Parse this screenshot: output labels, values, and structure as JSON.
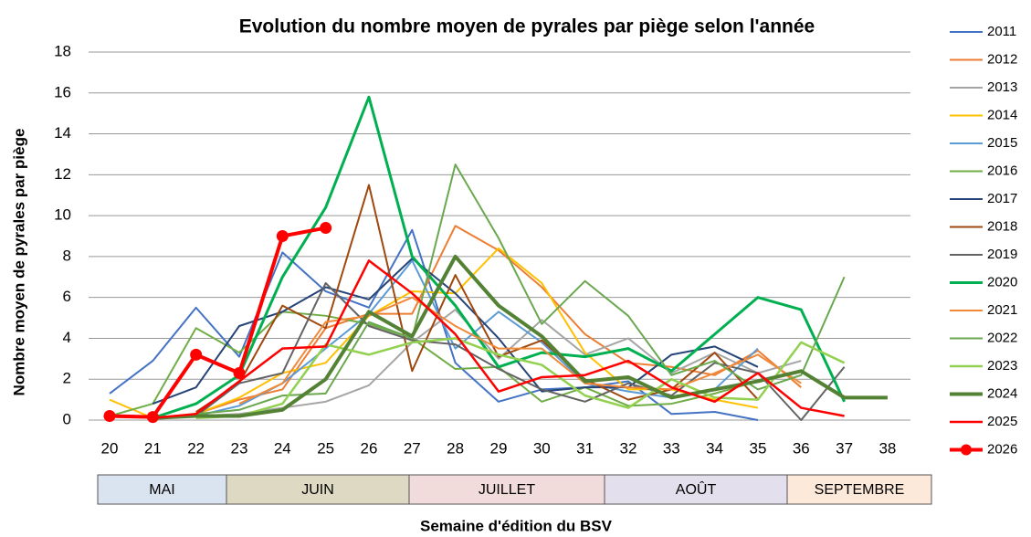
{
  "chart_data": {
    "type": "line",
    "title": "Evolution du nombre moyen de pyrales par piège selon l'année",
    "y_label": "Nombre moyen de pyrales par piège",
    "x_label": "Semaine d'édition du BSV",
    "categories": [
      20,
      21,
      22,
      23,
      24,
      25,
      26,
      27,
      28,
      29,
      30,
      31,
      32,
      33,
      34,
      35,
      36,
      37,
      38
    ],
    "ylim": [
      0,
      18
    ],
    "yticks": [
      0,
      2,
      4,
      6,
      8,
      10,
      12,
      14,
      16,
      18
    ],
    "grid": true,
    "legend": "right",
    "months": [
      "MAI",
      "JUIN",
      "JUILLET",
      "AOÛT",
      "SEPTEMBRE"
    ],
    "series": [
      {
        "name": "2011",
        "color": "#4472c4",
        "values": [
          1.3,
          2.9,
          5.5,
          3.1,
          8.2,
          6.3,
          5.5,
          9.3,
          2.8,
          0.9,
          1.5,
          1.6,
          1.9,
          0.3,
          0.4,
          0,
          null,
          null,
          null
        ]
      },
      {
        "name": "2012",
        "color": "#ed7d31",
        "values": [
          null,
          0.1,
          0.3,
          1,
          1.5,
          4.5,
          5.2,
          5.2,
          9.5,
          8.3,
          6.5,
          4.2,
          2.8,
          2.6,
          2.2,
          3.4,
          1.6,
          null,
          null
        ]
      },
      {
        "name": "2013",
        "color": "#a5a5a5",
        "values": [
          null,
          0.1,
          0.2,
          0.3,
          0.6,
          0.9,
          1.7,
          3.8,
          5.4,
          3,
          4.9,
          3.2,
          4,
          2.3,
          3.3,
          2.3,
          2.9,
          null,
          null
        ]
      },
      {
        "name": "2014",
        "color": "#ffc000",
        "values": [
          1,
          0.1,
          0.3,
          1.1,
          2.3,
          2.8,
          5.1,
          6.3,
          6.2,
          8.4,
          6.7,
          3.3,
          1.5,
          1.5,
          1,
          0.6,
          null,
          null,
          null
        ]
      },
      {
        "name": "2015",
        "color": "#5b9bd5",
        "values": [
          null,
          null,
          0.2,
          0.7,
          1.8,
          3.5,
          5.2,
          7.8,
          3.5,
          5.3,
          3.8,
          1.8,
          1.4,
          1.1,
          1.5,
          3.5,
          null,
          null,
          null
        ]
      },
      {
        "name": "2016",
        "color": "#70ad47",
        "values": [
          0.2,
          0.8,
          4.5,
          3.3,
          5.3,
          5.1,
          4.7,
          4,
          2.5,
          2.6,
          0.9,
          1.6,
          0.7,
          0.8,
          1.3,
          1.9,
          null,
          null,
          null
        ]
      },
      {
        "name": "2017",
        "color": "#264478",
        "values": [
          null,
          0.8,
          1.6,
          4.6,
          5.3,
          6.5,
          5.9,
          7.9,
          6.2,
          4,
          1.4,
          1.6,
          1.6,
          3.2,
          3.6,
          2.6,
          null,
          null,
          null
        ]
      },
      {
        "name": "2018",
        "color": "#9e480e",
        "values": [
          null,
          null,
          0.4,
          1.8,
          5.6,
          4.5,
          11.5,
          2.4,
          7.1,
          3.1,
          3.9,
          2,
          1,
          1.5,
          3.3,
          1,
          null,
          null,
          null
        ]
      },
      {
        "name": "2019",
        "color": "#636363",
        "values": [
          null,
          null,
          0.2,
          1.8,
          2.3,
          6.7,
          4.6,
          3.9,
          3.7,
          2.5,
          1.5,
          0.9,
          1.8,
          1.2,
          2.8,
          2.3,
          0,
          2.6,
          null
        ]
      },
      {
        "name": "2020",
        "color": "#00b050",
        "width": 3,
        "values": [
          null,
          0.1,
          0.8,
          2.2,
          7,
          10.4,
          15.8,
          8,
          5.6,
          2.6,
          3.3,
          3.1,
          3.5,
          2.4,
          4.2,
          6,
          5.4,
          0.9,
          null
        ]
      },
      {
        "name": "2021",
        "color": "#f08a3a",
        "values": [
          null,
          null,
          null,
          0.8,
          1.8,
          4.8,
          5.1,
          6,
          4.6,
          3.5,
          3.5,
          1.8,
          1.6,
          1.5,
          2.3,
          3.2,
          1.8,
          null,
          null
        ]
      },
      {
        "name": "2022",
        "color": "#6aa84f",
        "values": [
          null,
          null,
          0.3,
          0.5,
          1.2,
          1.3,
          4.8,
          4,
          12.5,
          8.9,
          4.7,
          6.8,
          5.1,
          2.2,
          2.9,
          1.5,
          2.2,
          7,
          null
        ]
      },
      {
        "name": "2023",
        "color": "#92d050",
        "width": 2.5,
        "values": [
          null,
          null,
          0.1,
          0.2,
          0.8,
          3.7,
          3.2,
          3.8,
          4,
          3.2,
          2.7,
          1.2,
          0.6,
          2,
          1.1,
          1,
          3.8,
          2.8,
          null
        ]
      },
      {
        "name": "2024",
        "color": "#548235",
        "width": 4,
        "values": [
          null,
          0.1,
          0.2,
          0.2,
          0.5,
          2,
          5.3,
          4.1,
          8,
          5.6,
          4.1,
          1.9,
          2.1,
          1.1,
          1.5,
          1.9,
          2.4,
          1.1,
          1.1
        ]
      },
      {
        "name": "2025",
        "color": "#ff0000",
        "width": 2.5,
        "values": [
          null,
          0.1,
          0.3,
          1.9,
          3.5,
          3.6,
          7.8,
          6.2,
          4.2,
          1.4,
          2.1,
          2.2,
          2.9,
          1.6,
          0.9,
          2.3,
          0.6,
          0.2,
          null
        ]
      },
      {
        "name": "2026",
        "color": "#ff0000",
        "width": 4,
        "markers": true,
        "values": [
          0.2,
          0.15,
          3.2,
          2.3,
          9,
          9.4,
          null,
          null,
          null,
          null,
          null,
          null,
          null,
          null,
          null,
          null,
          null,
          null,
          null
        ]
      }
    ]
  }
}
